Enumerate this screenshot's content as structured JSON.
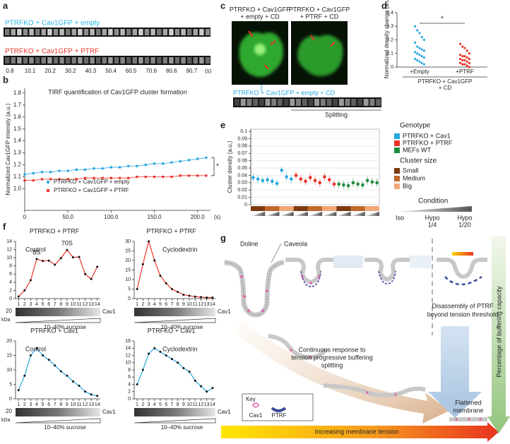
{
  "panel_labels": [
    "a",
    "b",
    "c",
    "d",
    "e",
    "f",
    "g"
  ],
  "panel_a": {
    "rows": [
      {
        "label": "PTRFKO + Cav1GFP + empty",
        "color": "#29b6e6"
      },
      {
        "label": "PTRFKO + Cav1GFP + PTRF",
        "color": "#e8332a"
      }
    ],
    "times": [
      "0.8",
      "10.1",
      "20.2",
      "30.2",
      "40.3",
      "50.4",
      "60.5",
      "70.6",
      "80.6",
      "90.7"
    ],
    "unit": "(s)"
  },
  "panel_c": {
    "images": [
      [
        "PTRFKO + Cav1GFP",
        "+ empty + CD"
      ],
      [
        "PTRFKO + Cav1GFP",
        "+ PTRF + CD"
      ]
    ],
    "strip_label": "PTRFKO + Cav1GFP + empty + CD",
    "annotation": "Splitting"
  },
  "panel_g": {
    "doline": "Doline",
    "caveola": "Caveola",
    "disassembly": [
      "Disassembly of PTRF",
      "beyond tension threshold"
    ],
    "continuous": [
      "Continuous response to",
      "tension progressive buffering",
      "splitting"
    ],
    "key": "Key",
    "key_items": [
      "Cav1",
      "PTRF"
    ],
    "flattened": [
      "Flattened",
      "membrane"
    ],
    "tension": "Increasing membrane tension",
    "buffering": "Percentage of buffering capacity"
  },
  "chart_data": [
    {
      "type": "line",
      "title": "TIRF quantification of Cav1GFP cluster formation",
      "ylabel": "Normalized Cav1GFP intensity (a.u.)",
      "xunit": "(s)",
      "annotation": "*",
      "x": [
        0,
        10,
        20,
        30,
        40,
        50,
        60,
        70,
        80,
        90,
        100,
        110,
        120,
        130,
        140,
        150,
        160,
        170,
        180,
        190,
        200,
        210
      ],
      "series": [
        {
          "name": "PTRFKO + Cav1GFP + empty",
          "color": "#29a8e0",
          "values": [
            1.12,
            1.13,
            1.14,
            1.14,
            1.15,
            1.15,
            1.16,
            1.16,
            1.17,
            1.17,
            1.18,
            1.18,
            1.19,
            1.19,
            1.2,
            1.21,
            1.21,
            1.22,
            1.23,
            1.24,
            1.25,
            1.26
          ]
        },
        {
          "name": "PTRFKO + Cav1GFP + PTRF",
          "color": "#e8332a",
          "values": [
            1.07,
            1.07,
            1.08,
            1.08,
            1.08,
            1.08,
            1.08,
            1.09,
            1.09,
            1.09,
            1.09,
            1.09,
            1.09,
            1.1,
            1.1,
            1.1,
            1.1,
            1.1,
            1.11,
            1.11,
            1.11,
            1.11
          ]
        }
      ],
      "xlim": [
        0,
        215
      ],
      "ylim": [
        0.82,
        1.84
      ],
      "xticks": [
        0,
        {
          "value": 50,
          "label": "50.0"
        },
        {
          "value": 100,
          "label": "100.0"
        },
        {
          "value": 150,
          "label": "150.0"
        },
        {
          "value": 200,
          "label": "200.0"
        }
      ],
      "yticks": [
        {
          "value": 1,
          "label": "1.0"
        },
        1.1,
        1.2,
        1.3,
        1.4,
        1.5,
        1.6,
        1.7,
        1.8
      ]
    },
    {
      "type": "strip",
      "ylabel": "Normalized density change (a.u.)",
      "categories": [
        "+Empty",
        "+PTRF"
      ],
      "group_label": [
        "PTRFKO + Cav1GFP",
        "+ CD"
      ],
      "annotation": "*",
      "series": [
        {
          "color": "#29a8e0",
          "values": [
            0.3,
            0.27,
            0.25,
            0.22,
            0.2,
            0.18,
            0.15,
            0.14,
            0.13,
            0.12,
            0.11,
            0.1,
            0.09,
            0.08,
            0.07,
            0.06,
            0.05,
            0.04,
            0.03,
            0.02
          ]
        },
        {
          "color": "#e8332a",
          "values": [
            0.17,
            0.15,
            0.14,
            0.12,
            0.1,
            0.09,
            0.08,
            0.08,
            0.07,
            0.06,
            0.06,
            0.05,
            0.05,
            0.04,
            0.03,
            0.03,
            0.02,
            0.02,
            0.01,
            0
          ]
        }
      ],
      "ylim": [
        0,
        0.4
      ],
      "yticks": [
        0,
        0.1,
        0.2,
        0.3,
        0.4
      ]
    },
    {
      "type": "dot",
      "ylabel": "Cluster density (a.u.)",
      "legend_title": "Genotype",
      "series": [
        {
          "name": "PTRFKO + Cav1",
          "color": "#29a8e0",
          "values": [
            0.037,
            0.035,
            0.033,
            0.034,
            0.032,
            0.029,
            0.047,
            0.038,
            0.035
          ]
        },
        {
          "name": "PTRFKO + PTRF",
          "color": "#e8332a",
          "values": [
            0.04,
            0.035,
            0.032,
            0.037,
            0.033,
            0.03,
            0.038,
            0.034,
            0.028
          ]
        },
        {
          "name": "MEFs WT",
          "color": "#1e8a3c",
          "values": [
            0.028,
            0.027,
            0.026,
            0.03,
            0.028,
            0.027,
            0.033,
            0.031,
            0.03
          ]
        }
      ],
      "size_legend": {
        "title": "Cluster size",
        "items": [
          {
            "name": "Small",
            "color": "#7a3b10"
          },
          {
            "name": "Medium",
            "color": "#c0682a"
          },
          {
            "name": "Big",
            "color": "#f0a878"
          }
        ]
      },
      "condition_legend": {
        "title": "Condition",
        "items": [
          [
            "Iso"
          ],
          [
            "Hypo",
            "1/4"
          ],
          [
            "Hypo",
            "1/20"
          ]
        ]
      },
      "ylim": [
        0,
        0.103
      ],
      "yticks": [
        0,
        0.01,
        0.02,
        0.03,
        0.04,
        0.05,
        0.06,
        0.07,
        0.08,
        0.09,
        0.1
      ]
    },
    {
      "type": "line",
      "title": "PTRFKO + PTRF",
      "subtitle": "Control",
      "annotations": [
        "8S",
        "70S"
      ],
      "x": [
        1,
        2,
        3,
        4,
        5,
        6,
        7,
        8,
        9,
        10,
        11,
        12,
        13,
        14
      ],
      "series": [
        {
          "color": "#e8332a",
          "values": [
            0.5,
            2,
            4.5,
            9.7,
            9.2,
            9.3,
            8.3,
            9.9,
            11.9,
            10.1,
            10.2,
            6,
            4.8,
            7.8
          ]
        }
      ],
      "xlim": [
        0.5,
        14.5
      ],
      "ylim": [
        0,
        14
      ],
      "xticks": [
        1,
        2,
        3,
        4,
        5,
        6,
        7,
        8,
        9,
        10,
        11,
        12,
        13,
        14
      ],
      "yticks": [
        0,
        2,
        4,
        6,
        8,
        10,
        12,
        14
      ],
      "blot_kda": "20",
      "kda": "kDa",
      "blot_label": "Cav1",
      "gradient": "10–40% sucrose"
    },
    {
      "type": "line",
      "title": "PTRFKO + PTRF",
      "subtitle": "Cyclodextrin",
      "x": [
        1,
        2,
        3,
        4,
        5,
        6,
        7,
        8,
        9,
        10,
        11,
        12,
        13,
        14
      ],
      "series": [
        {
          "color": "#e8332a",
          "values": [
            5,
            18,
            30,
            20,
            12,
            8,
            5,
            3.5,
            2,
            1.5,
            1,
            0.8,
            0.5,
            0.5
          ]
        }
      ],
      "xlim": [
        0.5,
        14.5
      ],
      "ylim": [
        0,
        30
      ],
      "xticks": [
        1,
        2,
        3,
        4,
        5,
        6,
        7,
        8,
        9,
        10,
        11,
        12,
        13,
        14
      ],
      "yticks": [
        0,
        5,
        10,
        15,
        20,
        25,
        30
      ],
      "blot_label": "Cav1",
      "gradient": "10–40% sucrose"
    },
    {
      "type": "line",
      "title": "PTRFKO + Cav1",
      "subtitle": "Control",
      "x": [
        1,
        2,
        3,
        4,
        5,
        6,
        7,
        8,
        9,
        10,
        11,
        12,
        13,
        14
      ],
      "series": [
        {
          "color": "#29a8e0",
          "values": [
            3,
            8,
            15,
            17.5,
            15,
            13.5,
            11.5,
            9.5,
            8,
            6,
            4.5,
            2.5,
            1.5,
            1
          ]
        }
      ],
      "xlim": [
        0.5,
        14.5
      ],
      "ylim": [
        0,
        20
      ],
      "xticks": [
        1,
        2,
        3,
        4,
        5,
        6,
        7,
        8,
        9,
        10,
        11,
        12,
        13,
        14
      ],
      "yticks": [
        0,
        5,
        10,
        15,
        20
      ],
      "blot_kda": "20",
      "kda": "kDa",
      "blot_label": "Cav1",
      "gradient": "10–40% sucrose"
    },
    {
      "type": "line",
      "title": "PTRFKO + Cav1",
      "subtitle": "Cyclodextrin",
      "x": [
        1,
        2,
        3,
        4,
        5,
        6,
        7,
        8,
        9,
        10,
        11,
        12,
        13,
        14
      ],
      "series": [
        {
          "color": "#29a8e0",
          "values": [
            4,
            8,
            12.5,
            14,
            13,
            12,
            11,
            10,
            8.5,
            7.5,
            5,
            3.5,
            2,
            3
          ]
        }
      ],
      "xlim": [
        0.5,
        14.5
      ],
      "ylim": [
        0,
        16
      ],
      "xticks": [
        1,
        2,
        3,
        4,
        5,
        6,
        7,
        8,
        9,
        10,
        11,
        12,
        13,
        14
      ],
      "yticks": [
        0,
        2,
        4,
        6,
        8,
        10,
        12,
        14,
        16
      ],
      "blot_label": "Cav1",
      "gradient": "10–40% sucrose"
    }
  ]
}
